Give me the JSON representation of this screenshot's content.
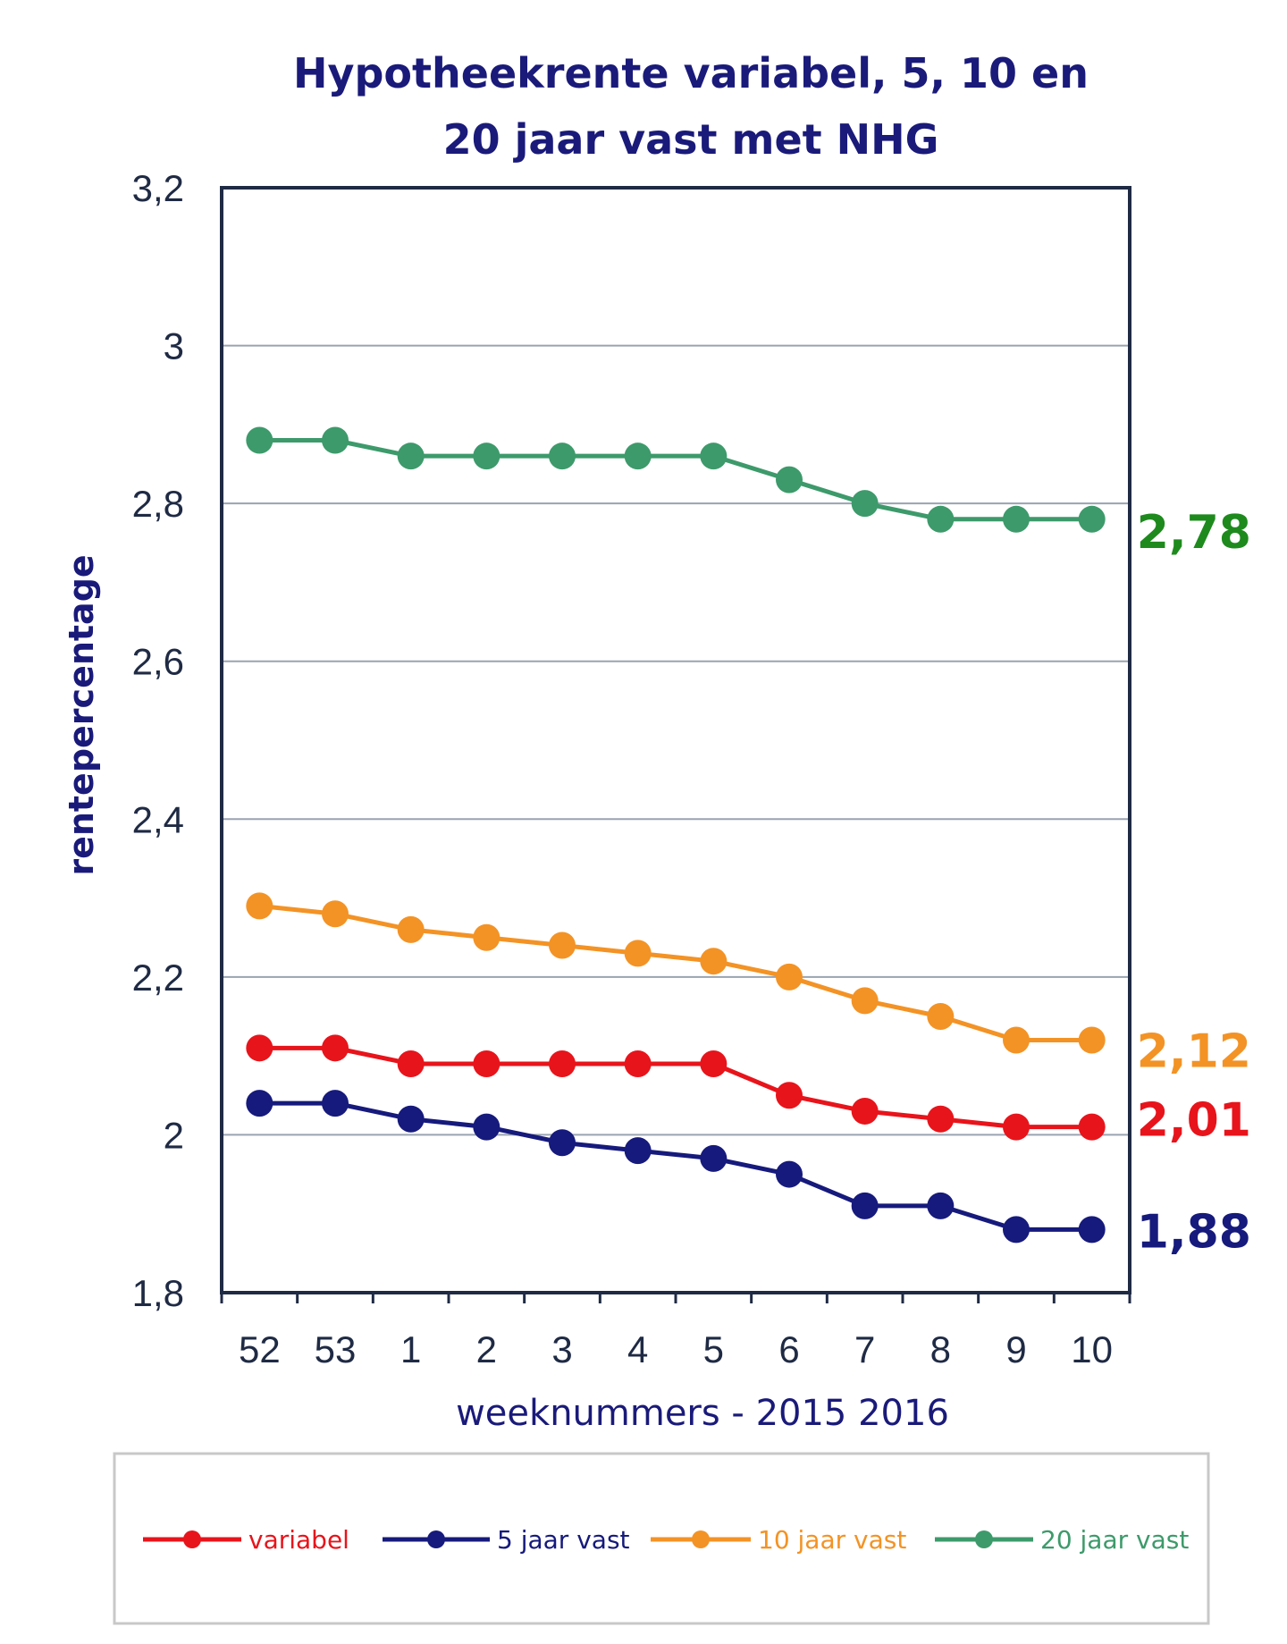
{
  "chart_data": {
    "type": "line",
    "title_lines": [
      "Hypotheekrente variabel, 5, 10 en",
      "20 jaar vast met NHG"
    ],
    "xlabel": "weeknummers - 2015 2016",
    "ylabel": "rentepercentage",
    "categories": [
      "52",
      "53",
      "1",
      "2",
      "3",
      "4",
      "5",
      "6",
      "7",
      "8",
      "9",
      "10"
    ],
    "ylim": [
      1.8,
      3.2
    ],
    "yticks": [
      {
        "value": 1.8,
        "label": "1,8"
      },
      {
        "value": 2.0,
        "label": "2"
      },
      {
        "value": 2.2,
        "label": "2,2"
      },
      {
        "value": 2.4,
        "label": "2,4"
      },
      {
        "value": 2.6,
        "label": "2,6"
      },
      {
        "value": 2.8,
        "label": "2,8"
      },
      {
        "value": 3.0,
        "label": "3"
      },
      {
        "value": 3.2,
        "label": "3,2"
      }
    ],
    "grid": true,
    "legend_position": "bottom",
    "series": [
      {
        "name": "variabel",
        "color": "#e8141b",
        "values": [
          2.11,
          2.11,
          2.09,
          2.09,
          2.09,
          2.09,
          2.09,
          2.05,
          2.03,
          2.02,
          2.01,
          2.01
        ],
        "end_label": "2,01"
      },
      {
        "name": "5 jaar vast",
        "color": "#161a7c",
        "values": [
          2.04,
          2.04,
          2.02,
          2.01,
          1.99,
          1.98,
          1.97,
          1.95,
          1.91,
          1.91,
          1.88,
          1.88
        ],
        "end_label": "1,88"
      },
      {
        "name": "10 jaar vast",
        "color": "#f39325",
        "values": [
          2.29,
          2.28,
          2.26,
          2.25,
          2.24,
          2.23,
          2.22,
          2.2,
          2.17,
          2.15,
          2.12,
          2.12
        ],
        "end_label": "2,12"
      },
      {
        "name": "20 jaar vast",
        "color": "#3d9a6b",
        "values": [
          2.88,
          2.88,
          2.86,
          2.86,
          2.86,
          2.86,
          2.86,
          2.83,
          2.8,
          2.78,
          2.78,
          2.78
        ],
        "end_label": "2,78",
        "end_label_color": "#1e8a1e"
      }
    ]
  }
}
